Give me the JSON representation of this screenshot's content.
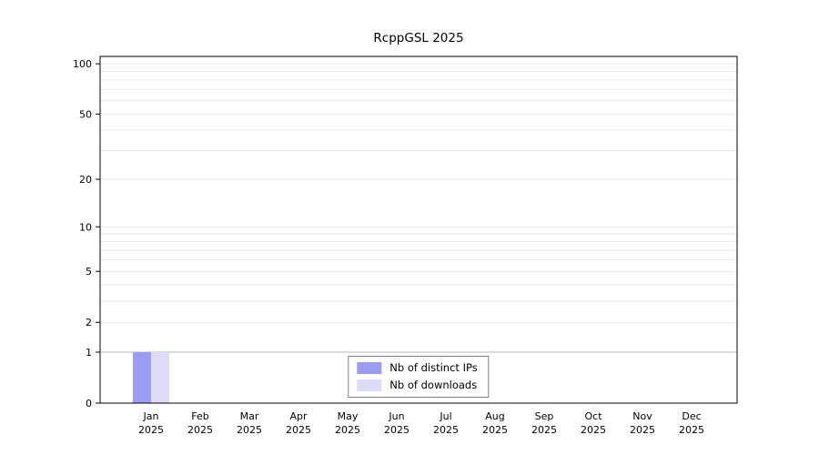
{
  "chart_data": {
    "type": "bar",
    "title": "RcppGSL 2025",
    "categories": [
      "Jan 2025",
      "Feb 2025",
      "Mar 2025",
      "Apr 2025",
      "May 2025",
      "Jun 2025",
      "Jul 2025",
      "Aug 2025",
      "Sep 2025",
      "Oct 2025",
      "Nov 2025",
      "Dec 2025"
    ],
    "series": [
      {
        "name": "Nb of distinct IPs",
        "color": "#9b9bf0",
        "values": [
          1,
          0,
          0,
          0,
          0,
          0,
          0,
          0,
          0,
          0,
          0,
          0
        ]
      },
      {
        "name": "Nb of downloads",
        "color": "#dcdcf8",
        "values": [
          1,
          0,
          0,
          0,
          0,
          0,
          0,
          0,
          0,
          0,
          0,
          0
        ]
      }
    ],
    "y_ticks": [
      0,
      1,
      2,
      5,
      10,
      20,
      50,
      100
    ],
    "ylim": [
      0,
      100
    ],
    "yscale": "log1p",
    "grid": "horizontal-minor-log",
    "legend_position": "bottom-center-inside",
    "xlabel": "",
    "ylabel": ""
  },
  "colors": {
    "grid": "#e7e7e7",
    "grid_major": "#b9b9b9",
    "axis": "#000000",
    "background": "#ffffff",
    "legend_border": "#7f7f7f"
  }
}
